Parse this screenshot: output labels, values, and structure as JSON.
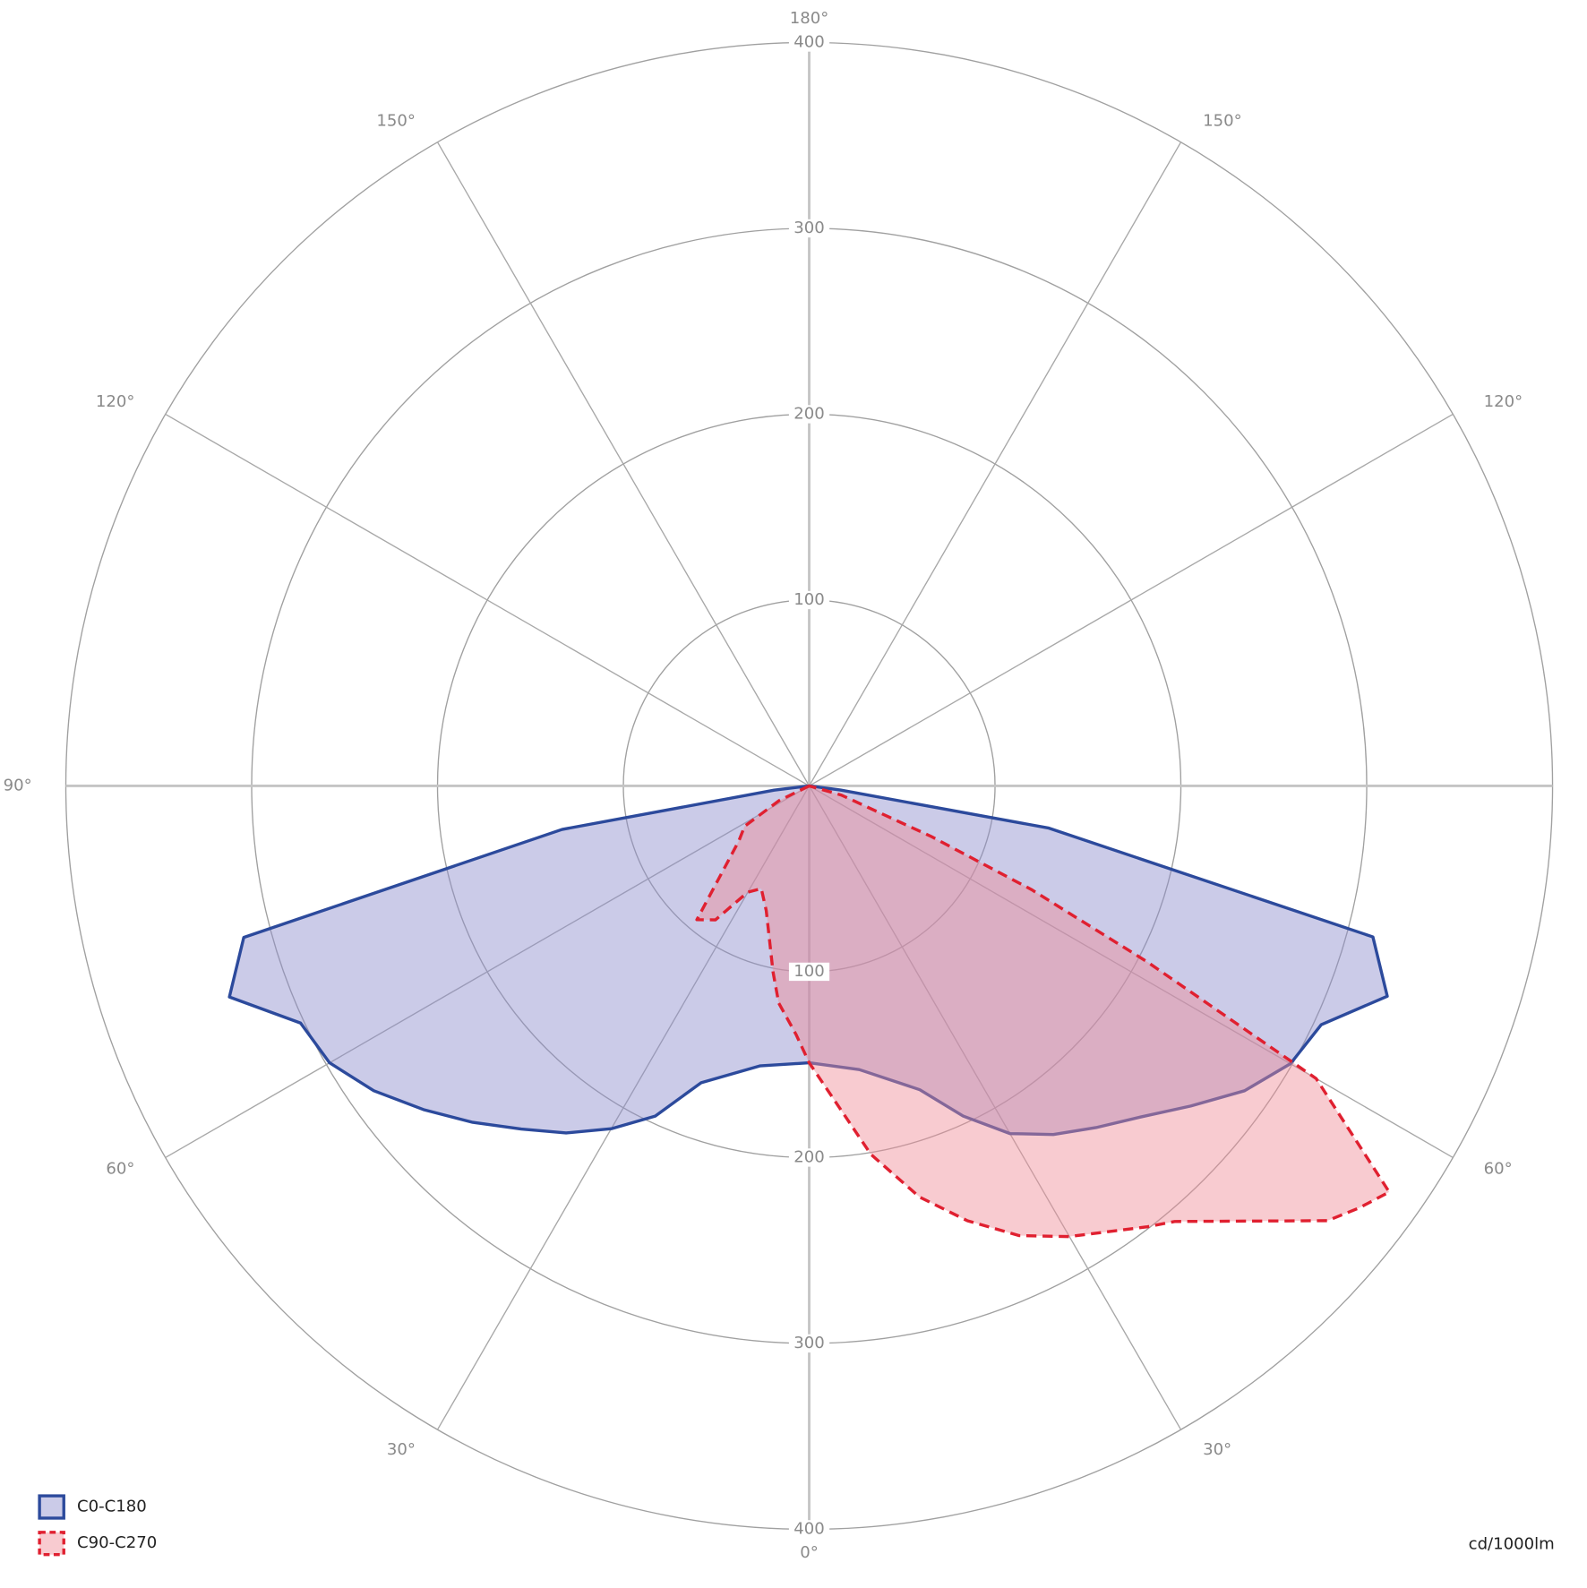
{
  "chart_data": {
    "type": "polar",
    "radial_label": "cd/1000lm",
    "rlim": [
      0,
      400
    ],
    "rticks": [
      100,
      200,
      300,
      400
    ],
    "angle_ticks": [
      {
        "value": -150,
        "label": "150°"
      },
      {
        "value": -120,
        "label": "120°"
      },
      {
        "value": -90,
        "label": "90°"
      },
      {
        "value": -60,
        "label": "60°"
      },
      {
        "value": -30,
        "label": "30°"
      },
      {
        "value": 0,
        "label": "0°"
      },
      {
        "value": 30,
        "label": "30°"
      },
      {
        "value": 60,
        "label": "60°"
      },
      {
        "value": 90,
        "label": "90°"
      },
      {
        "value": 120,
        "label": "120°"
      },
      {
        "value": 150,
        "label": "150°"
      },
      {
        "value": 180,
        "label": "180°"
      }
    ],
    "legend": "lower left",
    "series": [
      {
        "name": "C0-C180",
        "color": "#2c4a9c",
        "fill": "rgba(140,140,205,0.45)",
        "line_style": "solid",
        "x": [
          -90,
          -83,
          -80,
          -75,
          -70,
          -65,
          -60,
          -55,
          -50,
          -45,
          -40,
          -35,
          -30,
          -25,
          -20,
          -10,
          0,
          10,
          20,
          25,
          30,
          35,
          40,
          45,
          50,
          55,
          60,
          65,
          70,
          75,
          80,
          82.5,
          90
        ],
        "values": [
          0,
          19,
          135,
          315,
          332,
          302,
          298,
          286,
          271,
          256,
          241,
          228,
          213,
          196,
          170,
          153,
          149,
          155,
          174,
          196,
          216,
          229,
          240,
          252,
          268,
          286,
          299,
          304,
          331,
          314,
          131,
          17,
          0
        ]
      },
      {
        "name": "C90-C270",
        "color": "#e02030",
        "fill": "rgba(240,140,150,0.45)",
        "line_style": "dashed",
        "x": [
          -90,
          -64,
          -58,
          -52,
          -40,
          -35,
          -30,
          -25,
          -19,
          -11,
          -8,
          -3,
          0,
          9.5,
          15,
          20,
          25,
          30,
          37.5,
          40,
          50,
          52.5,
          55,
          60,
          62.5,
          65,
          67.5,
          74,
          90
        ],
        "values": [
          0,
          18,
          41,
          48,
          94,
          88,
          66,
          61,
          71,
          102,
          118,
          134,
          149,
          201,
          229,
          249,
          267,
          280,
          299,
          306,
          364,
          373,
          381,
          315,
          205,
          132,
          71,
          18,
          0
        ]
      }
    ]
  }
}
